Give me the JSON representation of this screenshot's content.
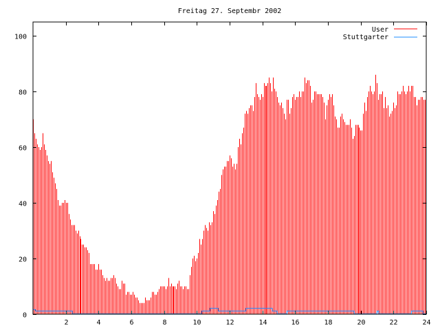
{
  "chart_data": {
    "type": "bar",
    "title": "Freitag 27. Septembr 2002",
    "xlabel": "",
    "ylabel": "",
    "xlim": [
      0,
      24
    ],
    "ylim": [
      0,
      105
    ],
    "x_step_hours": 0.0833,
    "xticks": [
      2,
      4,
      6,
      8,
      10,
      12,
      14,
      16,
      18,
      20,
      22,
      24
    ],
    "yticks": [
      0,
      20,
      40,
      60,
      80,
      100
    ],
    "grid": false,
    "legend_position": "top-right",
    "series": [
      {
        "name": "User",
        "color": "#ff0000",
        "style": "impulses",
        "values": [
          70,
          65,
          63,
          61,
          60,
          59,
          60,
          65,
          61,
          59,
          57,
          55,
          54,
          55,
          51,
          49,
          47,
          45,
          41,
          39,
          39,
          40,
          40,
          41,
          40,
          40,
          36,
          34,
          32,
          32,
          32,
          30,
          29,
          30,
          28,
          27,
          25,
          25,
          24,
          24,
          23,
          22,
          18,
          18,
          18,
          18,
          16,
          16,
          18,
          16,
          16,
          14,
          13,
          12,
          13,
          12,
          12,
          13,
          13,
          14,
          13,
          11,
          10,
          9,
          9,
          12,
          11,
          11,
          7,
          8,
          8,
          7,
          7,
          8,
          7,
          6,
          6,
          5,
          4,
          4,
          4,
          4,
          6,
          5,
          5,
          5,
          6,
          8,
          8,
          7,
          7,
          8,
          9,
          10,
          10,
          10,
          10,
          9,
          10,
          13,
          10,
          11,
          10,
          10,
          10,
          9,
          11,
          12,
          10,
          10,
          9,
          10,
          10,
          9,
          9,
          14,
          17,
          20,
          21,
          19,
          20,
          22,
          27,
          25,
          27,
          30,
          32,
          31,
          30,
          33,
          32,
          33,
          37,
          36,
          39,
          41,
          44,
          45,
          50,
          52,
          53,
          53,
          55,
          55,
          57,
          56,
          53,
          54,
          52,
          54,
          60,
          63,
          61,
          65,
          67,
          72,
          73,
          72,
          74,
          75,
          75,
          73,
          78,
          83,
          79,
          78,
          77,
          79,
          78,
          83,
          82,
          82,
          83,
          85,
          83,
          80,
          85,
          81,
          80,
          78,
          76,
          75,
          76,
          74,
          72,
          70,
          77,
          77,
          72,
          74,
          78,
          79,
          77,
          78,
          78,
          80,
          78,
          80,
          80,
          85,
          83,
          84,
          84,
          82,
          76,
          77,
          80,
          80,
          79,
          79,
          79,
          79,
          78,
          76,
          70,
          75,
          77,
          79,
          78,
          79,
          75,
          71,
          70,
          67,
          67,
          71,
          72,
          70,
          69,
          68,
          68,
          68,
          70,
          67,
          63,
          64,
          68,
          68,
          68,
          67,
          66,
          66,
          72,
          76,
          73,
          78,
          80,
          82,
          80,
          79,
          80,
          86,
          83,
          77,
          79,
          79,
          80,
          74,
          78,
          74,
          75,
          71,
          72,
          73,
          76,
          74,
          75,
          80,
          79,
          79,
          80,
          82,
          80,
          79,
          80,
          82,
          80,
          82,
          82,
          78,
          78,
          75,
          77,
          77,
          78,
          78,
          77,
          77
        ]
      },
      {
        "name": "Stuttgarter",
        "color": "#1e8cff",
        "style": "steps",
        "points": [
          [
            0,
            1.5
          ],
          [
            0.15,
            1
          ],
          [
            2.4,
            0
          ],
          [
            10.3,
            1
          ],
          [
            10.8,
            2
          ],
          [
            11.3,
            1
          ],
          [
            13.0,
            2
          ],
          [
            14.6,
            1
          ],
          [
            14.9,
            0
          ],
          [
            15.5,
            1
          ],
          [
            19.6,
            0
          ],
          [
            21.0,
            1
          ],
          [
            21.1,
            0
          ],
          [
            23.1,
            1
          ],
          [
            23.8,
            0
          ],
          [
            24,
            0
          ]
        ]
      }
    ]
  }
}
